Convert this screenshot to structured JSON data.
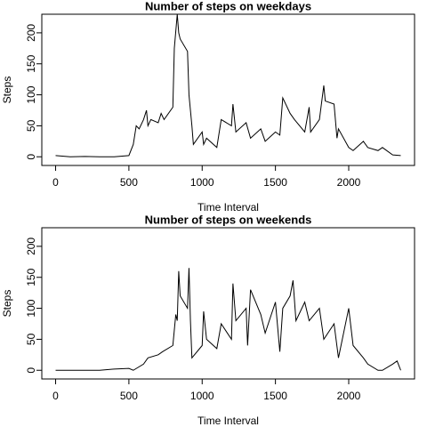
{
  "chart_data": [
    {
      "type": "line",
      "title": "Number of steps on weekdays",
      "x_label": "Time Interval",
      "y_label": "Steps",
      "xlim": [
        -94.2,
        2449.2
      ],
      "ylim": [
        -14,
        230
      ],
      "xticks": [
        0,
        500,
        1000,
        1500,
        2000
      ],
      "yticks": [
        0,
        50,
        100,
        150,
        200
      ],
      "series": [
        {
          "name": "weekday",
          "color": "#000000",
          "x": [
            0,
            100,
            200,
            300,
            400,
            500,
            530,
            550,
            570,
            600,
            620,
            630,
            650,
            700,
            720,
            740,
            800,
            810,
            830,
            840,
            850,
            900,
            910,
            930,
            940,
            1000,
            1010,
            1030,
            1100,
            1130,
            1200,
            1210,
            1230,
            1300,
            1330,
            1400,
            1430,
            1500,
            1530,
            1550,
            1600,
            1630,
            1700,
            1730,
            1740,
            1800,
            1830,
            1840,
            1900,
            1920,
            1930,
            2000,
            2030,
            2100,
            2130,
            2200,
            2230,
            2300,
            2355
          ],
          "values": [
            2,
            0,
            0.5,
            0,
            0,
            2,
            20,
            50,
            45,
            60,
            75,
            50,
            60,
            55,
            70,
            60,
            80,
            175,
            230,
            200,
            190,
            170,
            100,
            50,
            20,
            40,
            20,
            30,
            15,
            60,
            50,
            85,
            40,
            55,
            30,
            45,
            25,
            40,
            35,
            95,
            70,
            60,
            40,
            80,
            40,
            60,
            115,
            90,
            85,
            30,
            45,
            15,
            10,
            25,
            15,
            10,
            15,
            3,
            2
          ]
        }
      ]
    },
    {
      "type": "line",
      "title": "Number of steps on weekends",
      "x_label": "Time Interval",
      "y_label": "Steps",
      "xlim": [
        -94.2,
        2449.2
      ],
      "ylim": [
        -14,
        230
      ],
      "xticks": [
        0,
        500,
        1000,
        1500,
        2000
      ],
      "yticks": [
        0,
        50,
        100,
        150,
        200
      ],
      "series": [
        {
          "name": "weekend",
          "color": "#000000",
          "x": [
            0,
            100,
            300,
            400,
            500,
            530,
            600,
            630,
            700,
            730,
            800,
            820,
            830,
            840,
            850,
            900,
            910,
            920,
            930,
            1000,
            1010,
            1030,
            1100,
            1130,
            1200,
            1210,
            1230,
            1300,
            1310,
            1330,
            1400,
            1430,
            1500,
            1530,
            1550,
            1600,
            1620,
            1640,
            1700,
            1730,
            1800,
            1830,
            1900,
            1930,
            2000,
            2030,
            2100,
            2130,
            2200,
            2230,
            2300,
            2330,
            2355
          ],
          "values": [
            0,
            0,
            0,
            2,
            3,
            0,
            10,
            20,
            25,
            30,
            40,
            90,
            80,
            160,
            120,
            100,
            165,
            80,
            20,
            40,
            95,
            50,
            35,
            75,
            50,
            140,
            80,
            100,
            40,
            130,
            90,
            60,
            110,
            30,
            100,
            120,
            145,
            80,
            110,
            80,
            100,
            50,
            75,
            20,
            100,
            40,
            20,
            10,
            0,
            0,
            10,
            15,
            0
          ]
        }
      ]
    }
  ]
}
